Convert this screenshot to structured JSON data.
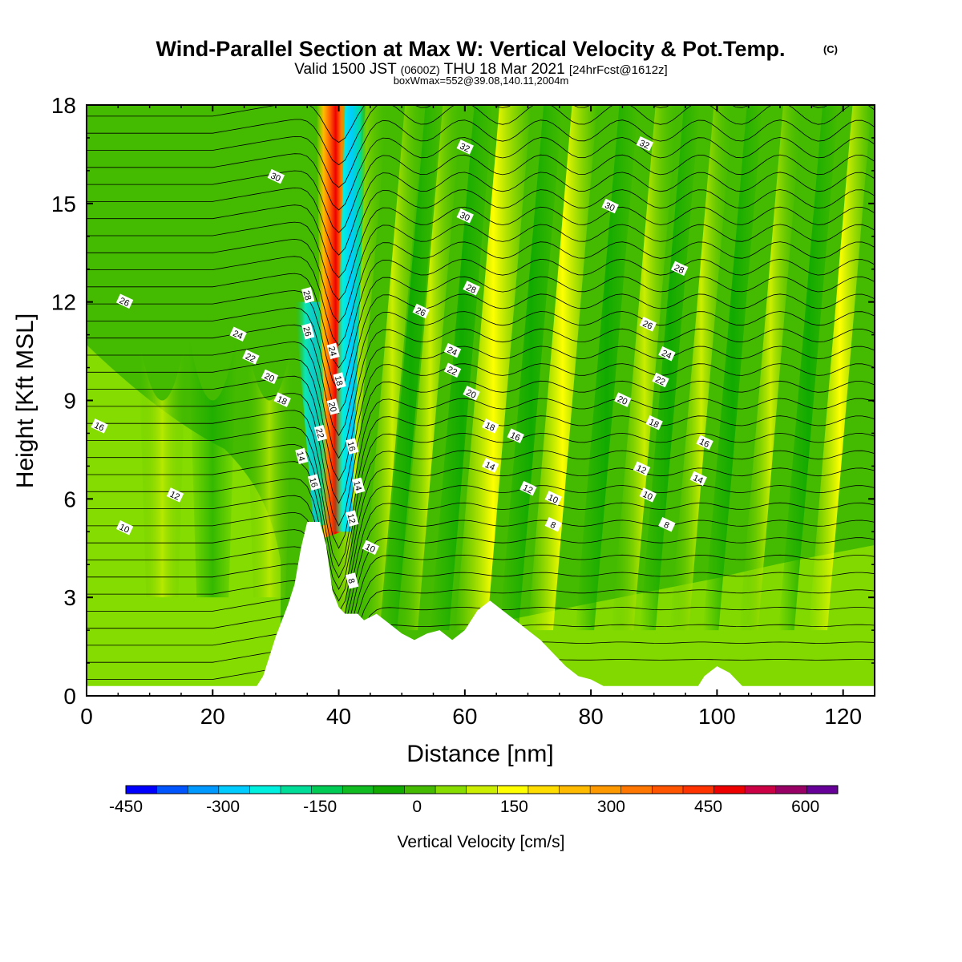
{
  "title": {
    "main": "Wind-Parallel Section at Max W: Vertical Velocity & Pot.Temp.",
    "copyright": "(C)",
    "valid_prefix": "Valid 1500 JST",
    "valid_utc": "(0600Z)",
    "valid_date": "THU 18 Mar 2021",
    "forecast": "[24hrFcst@1612z]",
    "boxmax": "boxWmax=552@39.08,140.11,2004m"
  },
  "chart_data": {
    "type": "heatmap",
    "xlabel": "Distance [nm]",
    "ylabel": "Height [Kft MSL]",
    "xlim": [
      0,
      125
    ],
    "ylim": [
      0,
      18
    ],
    "x_ticks": [
      0,
      20,
      40,
      60,
      80,
      100,
      120
    ],
    "y_ticks": [
      0,
      3,
      6,
      9,
      12,
      15,
      18
    ],
    "colorbar": {
      "title": "Vertical Velocity [cm/s]",
      "tick_labels": [
        "-450",
        "-300",
        "-150",
        "0",
        "150",
        "300",
        "450",
        "600"
      ],
      "tick_values": [
        -450,
        -300,
        -150,
        0,
        150,
        300,
        450,
        600
      ],
      "range": [
        -450,
        650
      ],
      "colors": [
        "#0000ff",
        "#0055ff",
        "#0099ff",
        "#00ccff",
        "#00f0e0",
        "#00dd99",
        "#00cc55",
        "#11bb22",
        "#11aa00",
        "#44bb00",
        "#88dd00",
        "#ccee00",
        "#ffff00",
        "#ffdd00",
        "#ffbb00",
        "#ff9900",
        "#ff7700",
        "#ff5500",
        "#ff3300",
        "#ee0000",
        "#cc0044",
        "#990066",
        "#660099"
      ]
    },
    "terrain": [
      [
        0,
        0.3
      ],
      [
        27,
        0.3
      ],
      [
        28,
        0.6
      ],
      [
        29,
        1.2
      ],
      [
        30,
        1.8
      ],
      [
        31,
        2.3
      ],
      [
        32,
        2.8
      ],
      [
        33,
        3.4
      ],
      [
        34,
        4.5
      ],
      [
        35,
        5.3
      ],
      [
        37,
        5.3
      ],
      [
        38,
        4.6
      ],
      [
        39,
        3.2
      ],
      [
        40,
        2.7
      ],
      [
        41,
        2.5
      ],
      [
        43,
        2.5
      ],
      [
        44,
        2.3
      ],
      [
        46,
        2.5
      ],
      [
        48,
        2.2
      ],
      [
        50,
        1.9
      ],
      [
        52,
        1.7
      ],
      [
        54,
        1.9
      ],
      [
        56,
        2.0
      ],
      [
        58,
        1.7
      ],
      [
        60,
        2.0
      ],
      [
        62,
        2.6
      ],
      [
        64,
        2.9
      ],
      [
        66,
        2.6
      ],
      [
        68,
        2.3
      ],
      [
        70,
        2.0
      ],
      [
        72,
        1.7
      ],
      [
        74,
        1.3
      ],
      [
        76,
        0.9
      ],
      [
        78,
        0.6
      ],
      [
        80,
        0.5
      ],
      [
        82,
        0.3
      ],
      [
        97,
        0.3
      ],
      [
        98,
        0.6
      ],
      [
        100,
        0.9
      ],
      [
        102,
        0.7
      ],
      [
        104,
        0.3
      ],
      [
        125,
        0.3
      ]
    ],
    "contour_labels": [
      {
        "text": "32",
        "x": 60,
        "y": 16.7
      },
      {
        "text": "32",
        "x": 88.5,
        "y": 16.8
      },
      {
        "text": "30",
        "x": 30,
        "y": 15.8
      },
      {
        "text": "30",
        "x": 60,
        "y": 14.6
      },
      {
        "text": "30",
        "x": 83,
        "y": 14.9
      },
      {
        "text": "28",
        "x": 35,
        "y": 12.2
      },
      {
        "text": "28",
        "x": 61,
        "y": 12.4
      },
      {
        "text": "28",
        "x": 94,
        "y": 13.0
      },
      {
        "text": "26",
        "x": 6,
        "y": 12.0
      },
      {
        "text": "26",
        "x": 35,
        "y": 11.1
      },
      {
        "text": "26",
        "x": 53,
        "y": 11.7
      },
      {
        "text": "26",
        "x": 89,
        "y": 11.3
      },
      {
        "text": "24",
        "x": 24,
        "y": 11.0
      },
      {
        "text": "24",
        "x": 39,
        "y": 10.5
      },
      {
        "text": "24",
        "x": 58,
        "y": 10.5
      },
      {
        "text": "24",
        "x": 92,
        "y": 10.4
      },
      {
        "text": "22",
        "x": 26,
        "y": 10.3
      },
      {
        "text": "22",
        "x": 58,
        "y": 9.9
      },
      {
        "text": "22",
        "x": 91,
        "y": 9.6
      },
      {
        "text": "20",
        "x": 29,
        "y": 9.7
      },
      {
        "text": "20",
        "x": 39,
        "y": 8.8
      },
      {
        "text": "20",
        "x": 61,
        "y": 9.2
      },
      {
        "text": "20",
        "x": 85,
        "y": 9.0
      },
      {
        "text": "18",
        "x": 31,
        "y": 9.0
      },
      {
        "text": "18",
        "x": 40,
        "y": 9.6
      },
      {
        "text": "18",
        "x": 64,
        "y": 8.2
      },
      {
        "text": "18",
        "x": 90,
        "y": 8.3
      },
      {
        "text": "16",
        "x": 2,
        "y": 8.2
      },
      {
        "text": "16",
        "x": 42,
        "y": 7.6
      },
      {
        "text": "16",
        "x": 68,
        "y": 7.9
      },
      {
        "text": "16",
        "x": 98,
        "y": 7.7
      },
      {
        "text": "16",
        "x": 36,
        "y": 6.5
      },
      {
        "text": "22",
        "x": 37,
        "y": 8.0
      },
      {
        "text": "14",
        "x": 34,
        "y": 7.3
      },
      {
        "text": "14",
        "x": 64,
        "y": 7.0
      },
      {
        "text": "14",
        "x": 43,
        "y": 6.4
      },
      {
        "text": "14",
        "x": 97,
        "y": 6.6
      },
      {
        "text": "12",
        "x": 14,
        "y": 6.1
      },
      {
        "text": "12",
        "x": 70,
        "y": 6.3
      },
      {
        "text": "12",
        "x": 88,
        "y": 6.9
      },
      {
        "text": "12",
        "x": 42,
        "y": 5.4
      },
      {
        "text": "10",
        "x": 6,
        "y": 5.1
      },
      {
        "text": "10",
        "x": 74,
        "y": 6.0
      },
      {
        "text": "10",
        "x": 89,
        "y": 6.1
      },
      {
        "text": "10",
        "x": 45,
        "y": 4.5
      },
      {
        "text": "8",
        "x": 74,
        "y": 5.2
      },
      {
        "text": "8",
        "x": 92,
        "y": 5.2
      },
      {
        "text": "8",
        "x": 42,
        "y": 3.5
      }
    ]
  }
}
